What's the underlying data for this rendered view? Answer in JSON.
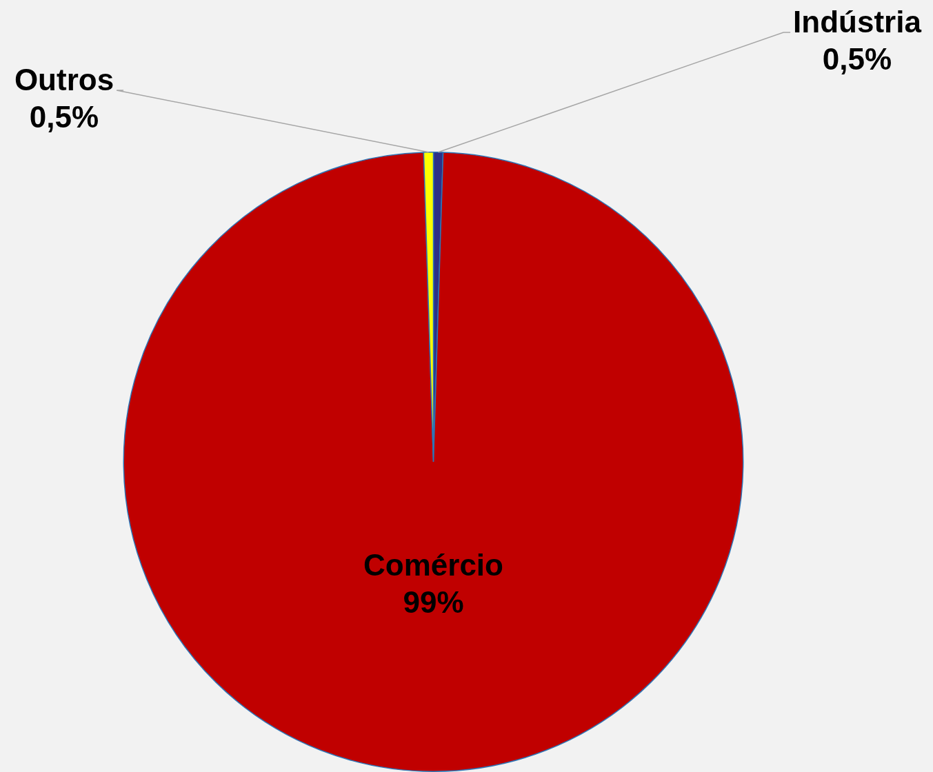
{
  "chart_data": {
    "type": "pie",
    "categories": [
      "Indústria",
      "Comércio",
      "Outros"
    ],
    "values": [
      0.5,
      99,
      0.5
    ],
    "colors": [
      "#2e3087",
      "#c00000",
      "#ffff00"
    ],
    "value_labels": [
      "0,5%",
      "99%",
      "0,5%"
    ],
    "legend": false
  }
}
